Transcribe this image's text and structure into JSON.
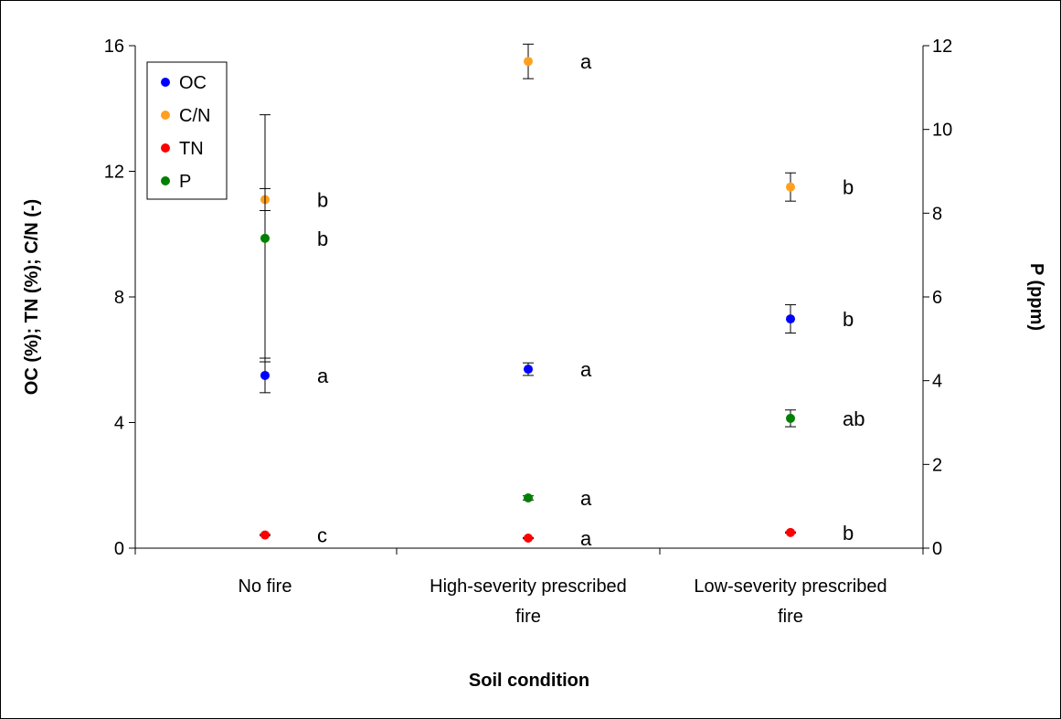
{
  "chart_data": {
    "type": "scatter",
    "xlabel": "Soil condition",
    "ylabel": "OC (%); TN (%); C/N (-)",
    "ylabel_right": "P (ppm)",
    "categories": [
      "No fire",
      "High-severity prescribed fire",
      "Low-severity prescribed fire"
    ],
    "category_label_lines": [
      [
        "No fire"
      ],
      [
        "High-severity prescribed",
        "fire"
      ],
      [
        "Low-severity prescribed",
        "fire"
      ]
    ],
    "ylim": [
      0,
      16
    ],
    "yticks": [
      0,
      4,
      8,
      12,
      16
    ],
    "ylim_right": [
      0,
      12
    ],
    "yticks_right": [
      0,
      2,
      4,
      6,
      8,
      10,
      12
    ],
    "legend_position": "top-left",
    "series": [
      {
        "name": "OC",
        "axis": "left",
        "color": "#0000ff",
        "values": [
          5.5,
          5.7,
          7.3
        ],
        "errors": [
          0.55,
          0.2,
          0.45
        ],
        "letters": [
          "a",
          "a",
          "b"
        ]
      },
      {
        "name": "C/N",
        "axis": "left",
        "color": "#ffa020",
        "values": [
          11.1,
          15.5,
          11.5
        ],
        "errors": [
          0.35,
          0.55,
          0.45
        ],
        "letters": [
          "b",
          "a",
          "b"
        ]
      },
      {
        "name": "TN",
        "axis": "left",
        "color": "#ff0000",
        "values": [
          0.42,
          0.32,
          0.5
        ],
        "errors": [
          0.02,
          0.02,
          0.02
        ],
        "letters": [
          "c",
          "a",
          "b"
        ]
      },
      {
        "name": "P",
        "axis": "right",
        "color": "#008000",
        "values": [
          7.4,
          1.2,
          3.1
        ],
        "errors": [
          2.95,
          0.05,
          0.2
        ],
        "letters": [
          "b",
          "a",
          "ab"
        ]
      }
    ]
  }
}
